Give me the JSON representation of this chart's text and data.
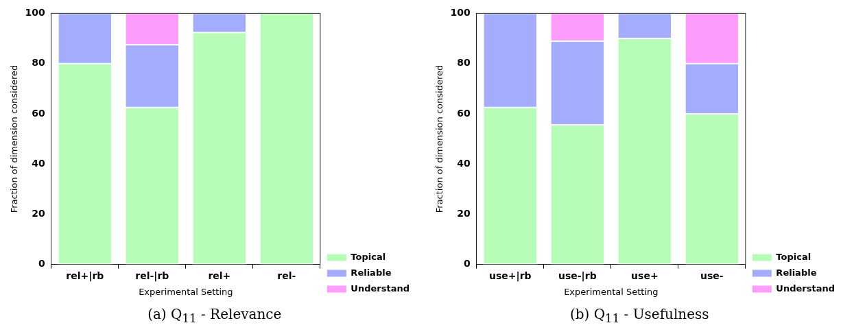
{
  "chart_data": [
    {
      "type": "bar",
      "title": "(a) Q$_{11}$ - Relevance",
      "xlabel": "Experimental Setting",
      "ylabel": "Fraction of dimension considered",
      "categories": [
        "rel+|rb",
        "rel-|rb",
        "rel+",
        "rel-"
      ],
      "stacked": true,
      "ylim": [
        0,
        100
      ],
      "yticks": [
        0,
        20,
        40,
        60,
        80,
        100
      ],
      "legend": "bottom right",
      "series": [
        {
          "name": "Topical",
          "color": "#b7fcb7",
          "values": [
            80,
            62.5,
            92.3,
            100
          ]
        },
        {
          "name": "Reliable",
          "color": "#a4acfd",
          "values": [
            20,
            25,
            7.7,
            0
          ]
        },
        {
          "name": "Understand",
          "color": "#fe9cfe",
          "values": [
            0,
            12.5,
            0,
            0
          ]
        }
      ]
    },
    {
      "type": "bar",
      "title": "(b) Q$_{11}$ - Usefulness",
      "xlabel": "Experimental Setting",
      "ylabel": "Fraction of dimension considered",
      "categories": [
        "use+|rb",
        "use-|rb",
        "use+",
        "use-"
      ],
      "stacked": true,
      "ylim": [
        0,
        100
      ],
      "yticks": [
        0,
        20,
        40,
        60,
        80,
        100
      ],
      "legend": "bottom right",
      "series": [
        {
          "name": "Topical",
          "color": "#b7fcb7",
          "values": [
            62.5,
            55.6,
            90,
            60
          ]
        },
        {
          "name": "Reliable",
          "color": "#a4acfd",
          "values": [
            37.5,
            33.3,
            10,
            20
          ]
        },
        {
          "name": "Understand",
          "color": "#fe9cfe",
          "values": [
            0,
            11.1,
            0,
            20
          ]
        }
      ]
    }
  ]
}
